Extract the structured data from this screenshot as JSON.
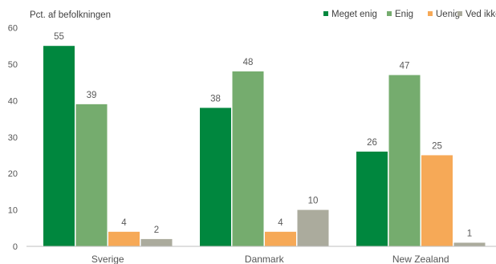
{
  "chart_data": {
    "type": "bar",
    "ylabel": "Pct. af befolkningen",
    "categories": [
      "Sverige",
      "Danmark",
      "New Zealand"
    ],
    "ylim": [
      0,
      60
    ],
    "yticks": [
      0,
      10,
      20,
      30,
      40,
      50,
      60
    ],
    "grid": false,
    "legend_position": "top-right",
    "series": [
      {
        "name": "Meget enig",
        "color": "#00873E",
        "values": [
          55,
          38,
          26
        ]
      },
      {
        "name": "Enig",
        "color": "#75AC6E",
        "values": [
          39,
          48,
          47
        ]
      },
      {
        "name": "Uenig",
        "color": "#F6A957",
        "values": [
          4,
          4,
          25
        ]
      },
      {
        "name": "Ved ikke",
        "color": "#ABAB9D",
        "values": [
          2,
          10,
          1
        ]
      }
    ]
  }
}
